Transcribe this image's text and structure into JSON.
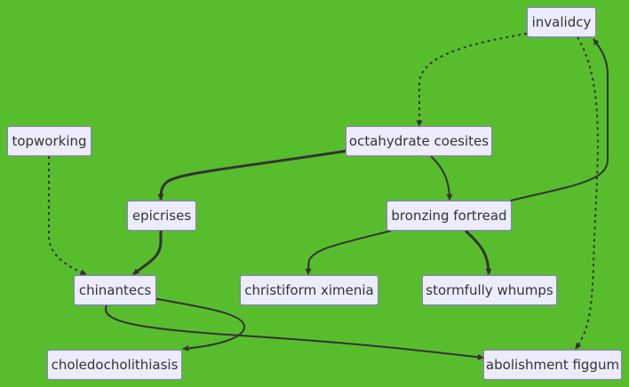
{
  "nodes": [
    {
      "id": "invalidcy",
      "label": "invalidcy"
    },
    {
      "id": "topworking",
      "label": "topworking"
    },
    {
      "id": "octahydrate_coesites",
      "label": "octahydrate coesites"
    },
    {
      "id": "epicrises",
      "label": "epicrises"
    },
    {
      "id": "bronzing_fortread",
      "label": "bronzing fortread"
    },
    {
      "id": "chinantecs",
      "label": "chinantecs"
    },
    {
      "id": "christiform_ximenia",
      "label": "christiform ximenia"
    },
    {
      "id": "stormfully_whumps",
      "label": "stormfully whumps"
    },
    {
      "id": "choledocholithiasis",
      "label": "choledocholithiasis"
    },
    {
      "id": "abolishment_figgum",
      "label": "abolishment figgum"
    }
  ],
  "edges": [
    {
      "from": "invalidcy",
      "to": "octahydrate_coesites",
      "style": "dotted"
    },
    {
      "from": "invalidcy",
      "to": "abolishment_figgum",
      "style": "dotted"
    },
    {
      "from": "bronzing_fortread",
      "to": "invalidcy",
      "style": "solid"
    },
    {
      "from": "topworking",
      "to": "chinantecs",
      "style": "dotted"
    },
    {
      "from": "octahydrate_coesites",
      "to": "epicrises",
      "style": "thick"
    },
    {
      "from": "octahydrate_coesites",
      "to": "bronzing_fortread",
      "style": "solid"
    },
    {
      "from": "epicrises",
      "to": "chinantecs",
      "style": "thick"
    },
    {
      "from": "bronzing_fortread",
      "to": "christiform_ximenia",
      "style": "solid"
    },
    {
      "from": "bronzing_fortread",
      "to": "stormfully_whumps",
      "style": "thick"
    },
    {
      "from": "chinantecs",
      "to": "choledocholithiasis",
      "style": "solid"
    },
    {
      "from": "chinantecs",
      "to": "abolishment_figgum",
      "style": "solid"
    }
  ],
  "colors": {
    "background": "#58bd2c",
    "node_fill": "#ececfe",
    "node_border": "#9573de",
    "text": "#333333",
    "edge": "#333333"
  }
}
